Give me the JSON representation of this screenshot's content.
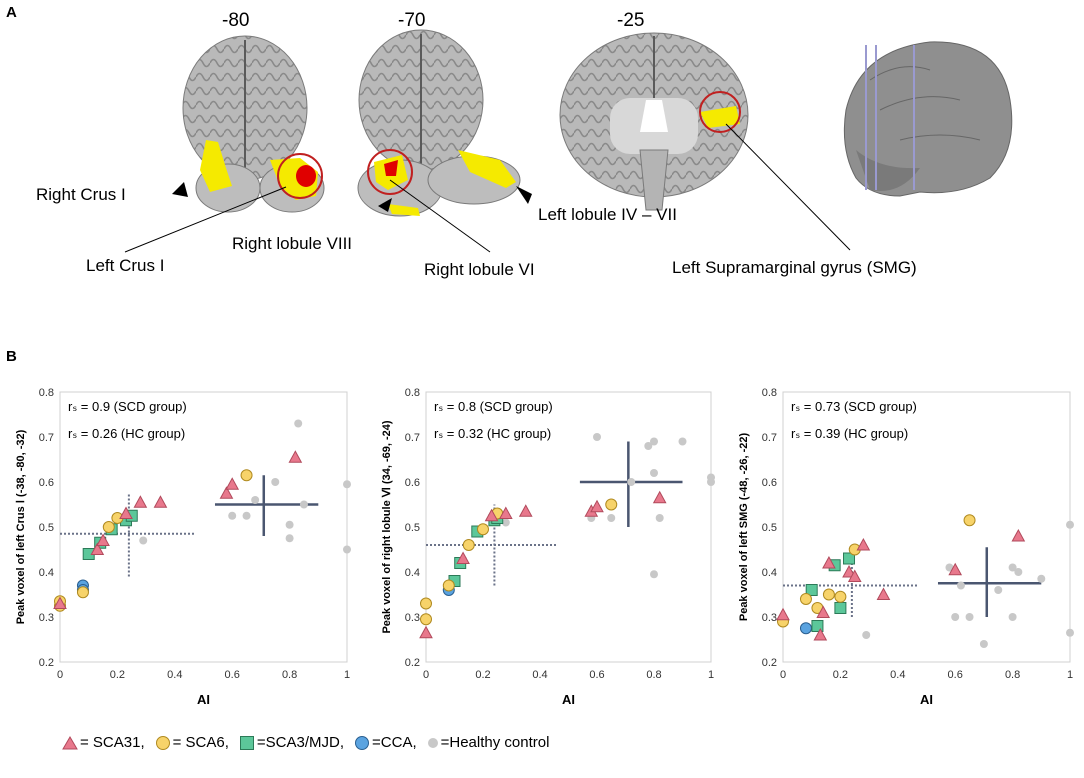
{
  "panel_a": {
    "letter": "A",
    "slices": [
      "-80",
      "-70",
      "-25"
    ],
    "labels": {
      "right_crus_i": "Right Crus I",
      "left_crus_i": "Left Crus I",
      "right_lobule_viii": "Right lobule VIII",
      "right_lobule_vi": "Right lobule VI",
      "left_lobule_iv_vii": "Left lobule IV – VII",
      "left_smg": "Left Supramarginal gyrus (SMG)"
    },
    "colors": {
      "cluster": "#f5ea00",
      "peak": "#e00000",
      "circle": "#c02020",
      "brain": "#9a9a9a"
    }
  },
  "panel_b": {
    "letter": "B"
  },
  "legend": {
    "sca31": "= SCA31,",
    "sca6": "= SCA6,",
    "sca3": "=SCA3/MJD,",
    "cca": "=CCA,",
    "hc": "=Healthy control"
  },
  "colors": {
    "sca31": "#e8788c",
    "sca6": "#f7d36a",
    "sca3": "#5cc79a",
    "cca": "#5aa3e0",
    "hc": "#c8c8c8",
    "fit": "#4a5670"
  },
  "chart_data": [
    {
      "type": "scatter",
      "xlabel": "AI",
      "ylabel": "Peak voxel of left Crus Ⅰ (-38, -80, -32)",
      "xlim": [
        0,
        1
      ],
      "ylim": [
        0.2,
        0.8
      ],
      "xticks": [
        "0",
        "0.2",
        "0.4",
        "0.6",
        "0.8",
        "1"
      ],
      "yticks": [
        "0.2",
        "0.3",
        "0.4",
        "0.5",
        "0.6",
        "0.7",
        "0.8"
      ],
      "annotations": [
        "rₛ = 0.9 (SCD group)",
        "rₛ = 0.26 (HC group)"
      ],
      "series": [
        {
          "name": "SCA31",
          "points": [
            [
              0.0,
              0.33
            ],
            [
              0.13,
              0.45
            ],
            [
              0.15,
              0.47
            ],
            [
              0.23,
              0.53
            ],
            [
              0.28,
              0.555
            ],
            [
              0.35,
              0.555
            ],
            [
              0.58,
              0.575
            ],
            [
              0.6,
              0.595
            ],
            [
              0.82,
              0.655
            ]
          ]
        },
        {
          "name": "SCA6",
          "points": [
            [
              0.0,
              0.325
            ],
            [
              0.0,
              0.335
            ],
            [
              0.08,
              0.355
            ],
            [
              0.17,
              0.5
            ],
            [
              0.2,
              0.52
            ],
            [
              0.65,
              0.615
            ]
          ]
        },
        {
          "name": "SCA3/MJD",
          "points": [
            [
              0.1,
              0.44
            ],
            [
              0.14,
              0.465
            ],
            [
              0.18,
              0.495
            ],
            [
              0.23,
              0.515
            ],
            [
              0.25,
              0.525
            ]
          ]
        },
        {
          "name": "CCA",
          "points": [
            [
              0.08,
              0.37
            ],
            [
              0.08,
              0.36
            ]
          ]
        },
        {
          "name": "Healthy control",
          "points": [
            [
              0.6,
              0.525
            ],
            [
              0.65,
              0.525
            ],
            [
              0.68,
              0.56
            ],
            [
              0.75,
              0.6
            ],
            [
              0.8,
              0.475
            ],
            [
              0.8,
              0.505
            ],
            [
              0.83,
              0.73
            ],
            [
              0.85,
              0.55
            ],
            [
              1.0,
              0.595
            ],
            [
              1.0,
              0.45
            ],
            [
              0.29,
              0.47
            ]
          ]
        }
      ],
      "crosshairs": [
        {
          "group": "SCD",
          "x": 0.24,
          "y": 0.485,
          "x_range": [
            0.0,
            0.47
          ],
          "y_range": [
            0.39,
            0.575
          ]
        },
        {
          "group": "HC",
          "x": 0.71,
          "y": 0.55,
          "x_range": [
            0.54,
            0.9
          ],
          "y_range": [
            0.48,
            0.615
          ]
        }
      ]
    },
    {
      "type": "scatter",
      "xlabel": "AI",
      "ylabel": "Peak voxel of right  lobule Ⅵ (34, -69, -24)",
      "xlim": [
        0,
        1
      ],
      "ylim": [
        0.2,
        0.8
      ],
      "xticks": [
        "0",
        "0.2",
        "0.4",
        "0.6",
        "0.8",
        "1"
      ],
      "yticks": [
        "0.2",
        "0.3",
        "0.4",
        "0.5",
        "0.6",
        "0.7",
        "0.8"
      ],
      "annotations": [
        "rₛ = 0.8 (SCD group)",
        "rₛ = 0.32 (HC group)"
      ],
      "series": [
        {
          "name": "SCA31",
          "points": [
            [
              0.0,
              0.265
            ],
            [
              0.13,
              0.43
            ],
            [
              0.23,
              0.525
            ],
            [
              0.28,
              0.53
            ],
            [
              0.35,
              0.535
            ],
            [
              0.58,
              0.535
            ],
            [
              0.6,
              0.545
            ],
            [
              0.82,
              0.565
            ]
          ]
        },
        {
          "name": "SCA6",
          "points": [
            [
              0.0,
              0.33
            ],
            [
              0.0,
              0.295
            ],
            [
              0.08,
              0.37
            ],
            [
              0.15,
              0.46
            ],
            [
              0.2,
              0.495
            ],
            [
              0.25,
              0.53
            ],
            [
              0.65,
              0.55
            ]
          ]
        },
        {
          "name": "SCA3/MJD",
          "points": [
            [
              0.1,
              0.38
            ],
            [
              0.12,
              0.42
            ],
            [
              0.18,
              0.49
            ],
            [
              0.24,
              0.515
            ],
            [
              0.25,
              0.52
            ]
          ]
        },
        {
          "name": "CCA",
          "points": [
            [
              0.08,
              0.36
            ]
          ]
        },
        {
          "name": "Healthy control",
          "points": [
            [
              0.58,
              0.52
            ],
            [
              0.6,
              0.7
            ],
            [
              0.65,
              0.52
            ],
            [
              0.72,
              0.6
            ],
            [
              0.78,
              0.68
            ],
            [
              0.8,
              0.69
            ],
            [
              0.8,
              0.62
            ],
            [
              0.8,
              0.395
            ],
            [
              0.82,
              0.52
            ],
            [
              0.9,
              0.69
            ],
            [
              1.0,
              0.61
            ],
            [
              1.0,
              0.6
            ],
            [
              0.28,
              0.51
            ]
          ]
        }
      ],
      "crosshairs": [
        {
          "group": "SCD",
          "x": 0.24,
          "y": 0.46,
          "x_range": [
            0.0,
            0.46
          ],
          "y_range": [
            0.37,
            0.55
          ]
        },
        {
          "group": "HC",
          "x": 0.71,
          "y": 0.6,
          "x_range": [
            0.54,
            0.9
          ],
          "y_range": [
            0.5,
            0.69
          ]
        }
      ]
    },
    {
      "type": "scatter",
      "xlabel": "AI",
      "ylabel": "Peak voxel of left SMG (-48, -26, -22)",
      "xlim": [
        0,
        1
      ],
      "ylim": [
        0.2,
        0.8
      ],
      "xticks": [
        "0",
        "0.2",
        "0.4",
        "0.6",
        "0.8",
        "1"
      ],
      "yticks": [
        "0.2",
        "0.3",
        "0.4",
        "0.5",
        "0.6",
        "0.7",
        "0.8"
      ],
      "annotations": [
        "rₛ = 0.73 (SCD group)",
        "rₛ = 0.39 (HC group)"
      ],
      "series": [
        {
          "name": "SCA31",
          "points": [
            [
              0.0,
              0.305
            ],
            [
              0.13,
              0.26
            ],
            [
              0.14,
              0.31
            ],
            [
              0.16,
              0.42
            ],
            [
              0.23,
              0.4
            ],
            [
              0.25,
              0.39
            ],
            [
              0.28,
              0.46
            ],
            [
              0.35,
              0.35
            ],
            [
              0.6,
              0.405
            ],
            [
              0.82,
              0.48
            ]
          ]
        },
        {
          "name": "SCA6",
          "points": [
            [
              0.0,
              0.29
            ],
            [
              0.08,
              0.34
            ],
            [
              0.12,
              0.32
            ],
            [
              0.16,
              0.35
            ],
            [
              0.2,
              0.345
            ],
            [
              0.25,
              0.45
            ],
            [
              0.65,
              0.515
            ]
          ]
        },
        {
          "name": "SCA3/MJD",
          "points": [
            [
              0.1,
              0.36
            ],
            [
              0.12,
              0.28
            ],
            [
              0.2,
              0.32
            ],
            [
              0.23,
              0.43
            ],
            [
              0.18,
              0.415
            ]
          ]
        },
        {
          "name": "CCA",
          "points": [
            [
              0.08,
              0.275
            ]
          ]
        },
        {
          "name": "Healthy control",
          "points": [
            [
              0.58,
              0.41
            ],
            [
              0.6,
              0.3
            ],
            [
              0.62,
              0.37
            ],
            [
              0.65,
              0.3
            ],
            [
              0.7,
              0.24
            ],
            [
              0.75,
              0.36
            ],
            [
              0.8,
              0.3
            ],
            [
              0.8,
              0.41
            ],
            [
              0.82,
              0.4
            ],
            [
              0.9,
              0.385
            ],
            [
              1.0,
              0.505
            ],
            [
              1.0,
              0.265
            ],
            [
              0.29,
              0.26
            ]
          ]
        }
      ],
      "crosshairs": [
        {
          "group": "SCD",
          "x": 0.24,
          "y": 0.37,
          "x_range": [
            0.0,
            0.47
          ],
          "y_range": [
            0.3,
            0.43
          ]
        },
        {
          "group": "HC",
          "x": 0.71,
          "y": 0.375,
          "x_range": [
            0.54,
            0.9
          ],
          "y_range": [
            0.3,
            0.455
          ]
        }
      ]
    }
  ]
}
